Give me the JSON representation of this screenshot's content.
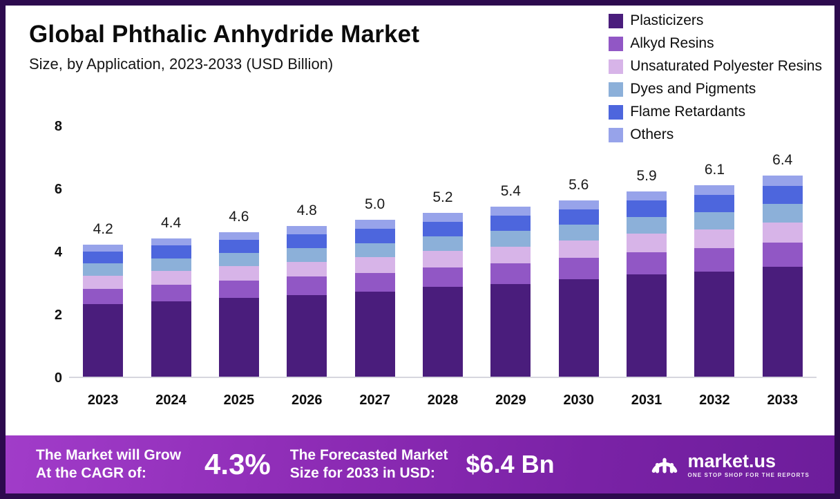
{
  "header": {
    "title": "Global Phthalic Anhydride Market",
    "subtitle": "Size, by Application, 2023-2033 (USD Billion)"
  },
  "chart_data": {
    "type": "bar",
    "stacked": true,
    "title": "Global Phthalic Anhydride Market Size, by Application, 2023-2033 (USD Billion)",
    "categories": [
      "2023",
      "2024",
      "2025",
      "2026",
      "2027",
      "2028",
      "2029",
      "2030",
      "2031",
      "2032",
      "2033"
    ],
    "totals": [
      4.2,
      4.4,
      4.6,
      4.8,
      5.0,
      5.2,
      5.4,
      5.6,
      5.9,
      6.1,
      6.4
    ],
    "series": [
      {
        "name": "Plasticizers",
        "color": "#4a1d7c",
        "values": [
          2.3,
          2.4,
          2.5,
          2.6,
          2.7,
          2.85,
          2.95,
          3.1,
          3.25,
          3.35,
          3.5
        ]
      },
      {
        "name": "Alkyd Resins",
        "color": "#9157c5",
        "values": [
          0.5,
          0.53,
          0.55,
          0.58,
          0.6,
          0.62,
          0.65,
          0.67,
          0.71,
          0.73,
          0.77
        ]
      },
      {
        "name": "Unsaturated Polyester Resins",
        "color": "#d7b4e8",
        "values": [
          0.42,
          0.44,
          0.46,
          0.48,
          0.5,
          0.52,
          0.54,
          0.56,
          0.59,
          0.61,
          0.64
        ]
      },
      {
        "name": "Dyes and Pigments",
        "color": "#8cb0d9",
        "values": [
          0.38,
          0.4,
          0.42,
          0.43,
          0.45,
          0.47,
          0.49,
          0.5,
          0.53,
          0.55,
          0.58
        ]
      },
      {
        "name": "Flame Retardants",
        "color": "#4d66dd",
        "values": [
          0.38,
          0.4,
          0.42,
          0.43,
          0.45,
          0.47,
          0.49,
          0.5,
          0.53,
          0.55,
          0.58
        ]
      },
      {
        "name": "Others",
        "color": "#97a3ea",
        "values": [
          0.22,
          0.23,
          0.25,
          0.28,
          0.3,
          0.27,
          0.28,
          0.27,
          0.29,
          0.31,
          0.33
        ]
      }
    ],
    "ylim": [
      0,
      8
    ],
    "yticks": [
      0,
      2,
      4,
      6,
      8
    ],
    "grid": false,
    "legend_position": "top-right"
  },
  "footer": {
    "cagr_label_line1": "The Market will Grow",
    "cagr_label_line2": "At the CAGR of:",
    "cagr_value": "4.3%",
    "forecast_label_line1": "The Forecasted Market",
    "forecast_label_line2": "Size for 2033 in USD:",
    "forecast_value": "$6.4 Bn",
    "brand": "market.us",
    "brand_tagline": "ONE STOP SHOP FOR THE REPORTS"
  },
  "colors": {
    "frame_border": "#2d0a4e",
    "footer_gradient_start": "#a13cc9",
    "footer_gradient_end": "#6d1d9b",
    "background": "#ffffff"
  }
}
